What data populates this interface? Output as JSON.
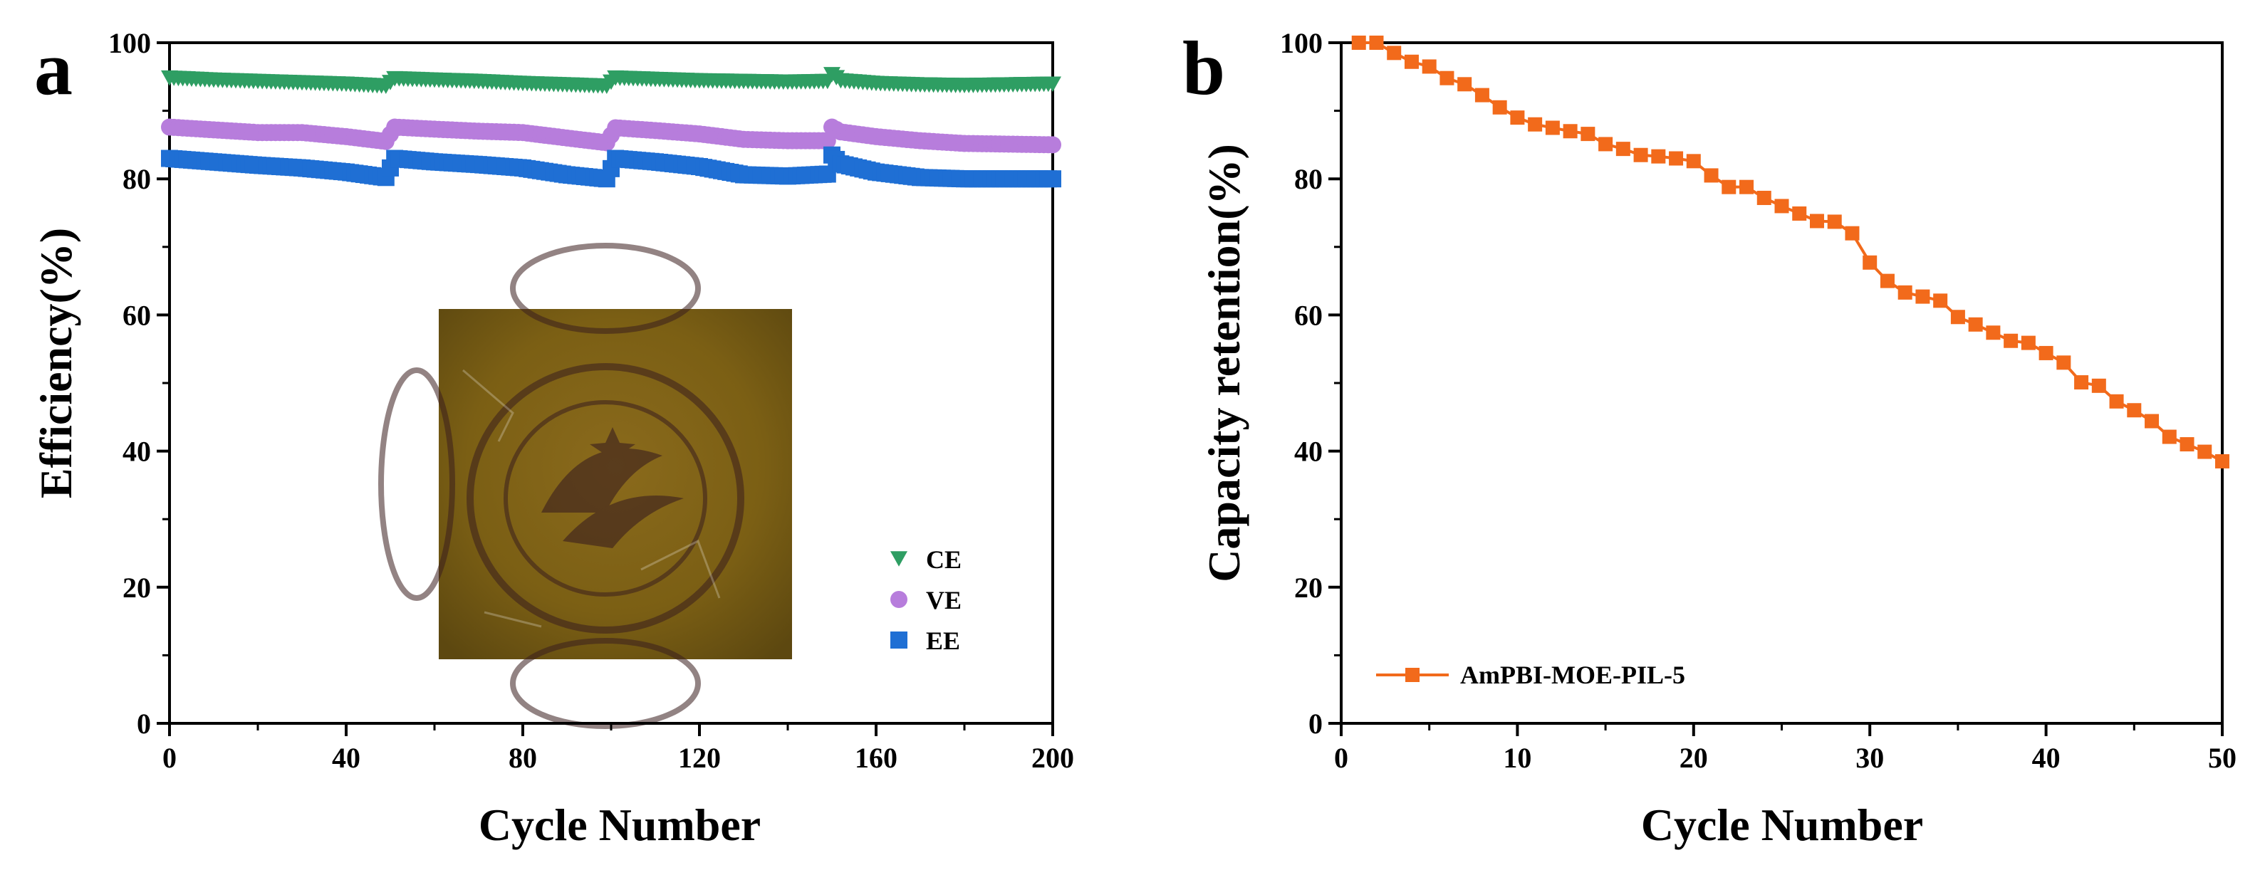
{
  "chart_data": [
    {
      "panel_label": "a",
      "type": "scatter",
      "xlabel": "Cycle Number",
      "ylabel": "Efficiency(%)",
      "xlim": [
        0,
        200
      ],
      "ylim": [
        0,
        100
      ],
      "xticks": [
        0,
        40,
        80,
        120,
        160,
        200
      ],
      "yticks": [
        0,
        20,
        40,
        60,
        80,
        100
      ],
      "legend_position": "bottom-right",
      "inset": "photo of membrane with circular logo",
      "series": [
        {
          "name": "CE",
          "color": "#2e9e63",
          "marker": "triangle-down",
          "x": [
            0,
            10,
            20,
            30,
            40,
            49,
            51,
            60,
            70,
            80,
            90,
            99,
            101,
            110,
            120,
            130,
            140,
            149,
            150,
            152,
            160,
            170,
            180,
            190,
            200
          ],
          "y": [
            94.8,
            94.5,
            94.3,
            94.1,
            93.9,
            93.6,
            94.7,
            94.5,
            94.3,
            94.0,
            93.8,
            93.6,
            94.8,
            94.6,
            94.4,
            94.3,
            94.2,
            94.3,
            95.3,
            94.4,
            94.0,
            93.8,
            93.7,
            93.8,
            93.9
          ]
        },
        {
          "name": "VE",
          "color": "#b77ddc",
          "marker": "circle",
          "x": [
            0,
            10,
            20,
            30,
            40,
            49,
            51,
            60,
            70,
            80,
            90,
            99,
            101,
            110,
            120,
            130,
            140,
            149,
            150,
            152,
            160,
            170,
            180,
            190,
            200
          ],
          "y": [
            87.6,
            87.2,
            86.8,
            86.8,
            86.2,
            85.5,
            87.6,
            87.3,
            87.0,
            86.8,
            86.0,
            85.3,
            87.5,
            87.1,
            86.6,
            85.8,
            85.6,
            85.6,
            87.6,
            86.9,
            86.2,
            85.6,
            85.2,
            85.1,
            85.0
          ]
        },
        {
          "name": "EE",
          "color": "#1f6fd4",
          "marker": "square",
          "x": [
            0,
            10,
            20,
            30,
            40,
            49,
            51,
            60,
            70,
            80,
            90,
            99,
            101,
            110,
            120,
            130,
            140,
            149,
            150,
            152,
            160,
            170,
            180,
            190,
            200
          ],
          "y": [
            83.0,
            82.5,
            82.0,
            81.6,
            81.0,
            80.2,
            83.0,
            82.5,
            82.1,
            81.6,
            80.6,
            80.0,
            83.0,
            82.5,
            81.8,
            80.6,
            80.4,
            80.7,
            83.5,
            82.2,
            81.0,
            80.2,
            80.0,
            80.0,
            80.0
          ]
        }
      ]
    },
    {
      "panel_label": "b",
      "type": "line",
      "xlabel": "Cycle Number",
      "ylabel": "Capacity retention(%)",
      "xlim": [
        0,
        50
      ],
      "ylim": [
        0,
        100
      ],
      "xticks": [
        0,
        10,
        20,
        30,
        40,
        50
      ],
      "yticks": [
        0,
        20,
        40,
        60,
        80,
        100
      ],
      "legend_position": "bottom-left",
      "series": [
        {
          "name": "AmPBI-MOE-PIL-5",
          "color": "#f26a1b",
          "marker": "square",
          "x": [
            1,
            2,
            3,
            4,
            5,
            6,
            7,
            8,
            9,
            10,
            11,
            12,
            13,
            14,
            15,
            16,
            17,
            18,
            19,
            20,
            21,
            22,
            23,
            24,
            25,
            26,
            27,
            28,
            29,
            30,
            31,
            32,
            33,
            34,
            35,
            36,
            37,
            38,
            39,
            40,
            41,
            42,
            43,
            44,
            45,
            46,
            47,
            48,
            49,
            50
          ],
          "y": [
            100,
            100,
            98.5,
            97.2,
            96.5,
            94.8,
            93.9,
            92.3,
            90.5,
            89.0,
            88.0,
            87.5,
            87.0,
            86.6,
            85.1,
            84.4,
            83.5,
            83.3,
            83.0,
            82.6,
            80.5,
            78.8,
            78.8,
            77.2,
            76.0,
            74.9,
            73.8,
            73.7,
            72.0,
            67.7,
            65.0,
            63.3,
            62.7,
            62.1,
            59.7,
            58.6,
            57.4,
            56.2,
            55.9,
            54.4,
            53.0,
            50.1,
            49.6,
            47.3,
            46.0,
            44.4,
            42.1,
            41.0,
            39.9,
            38.5
          ]
        }
      ]
    }
  ]
}
